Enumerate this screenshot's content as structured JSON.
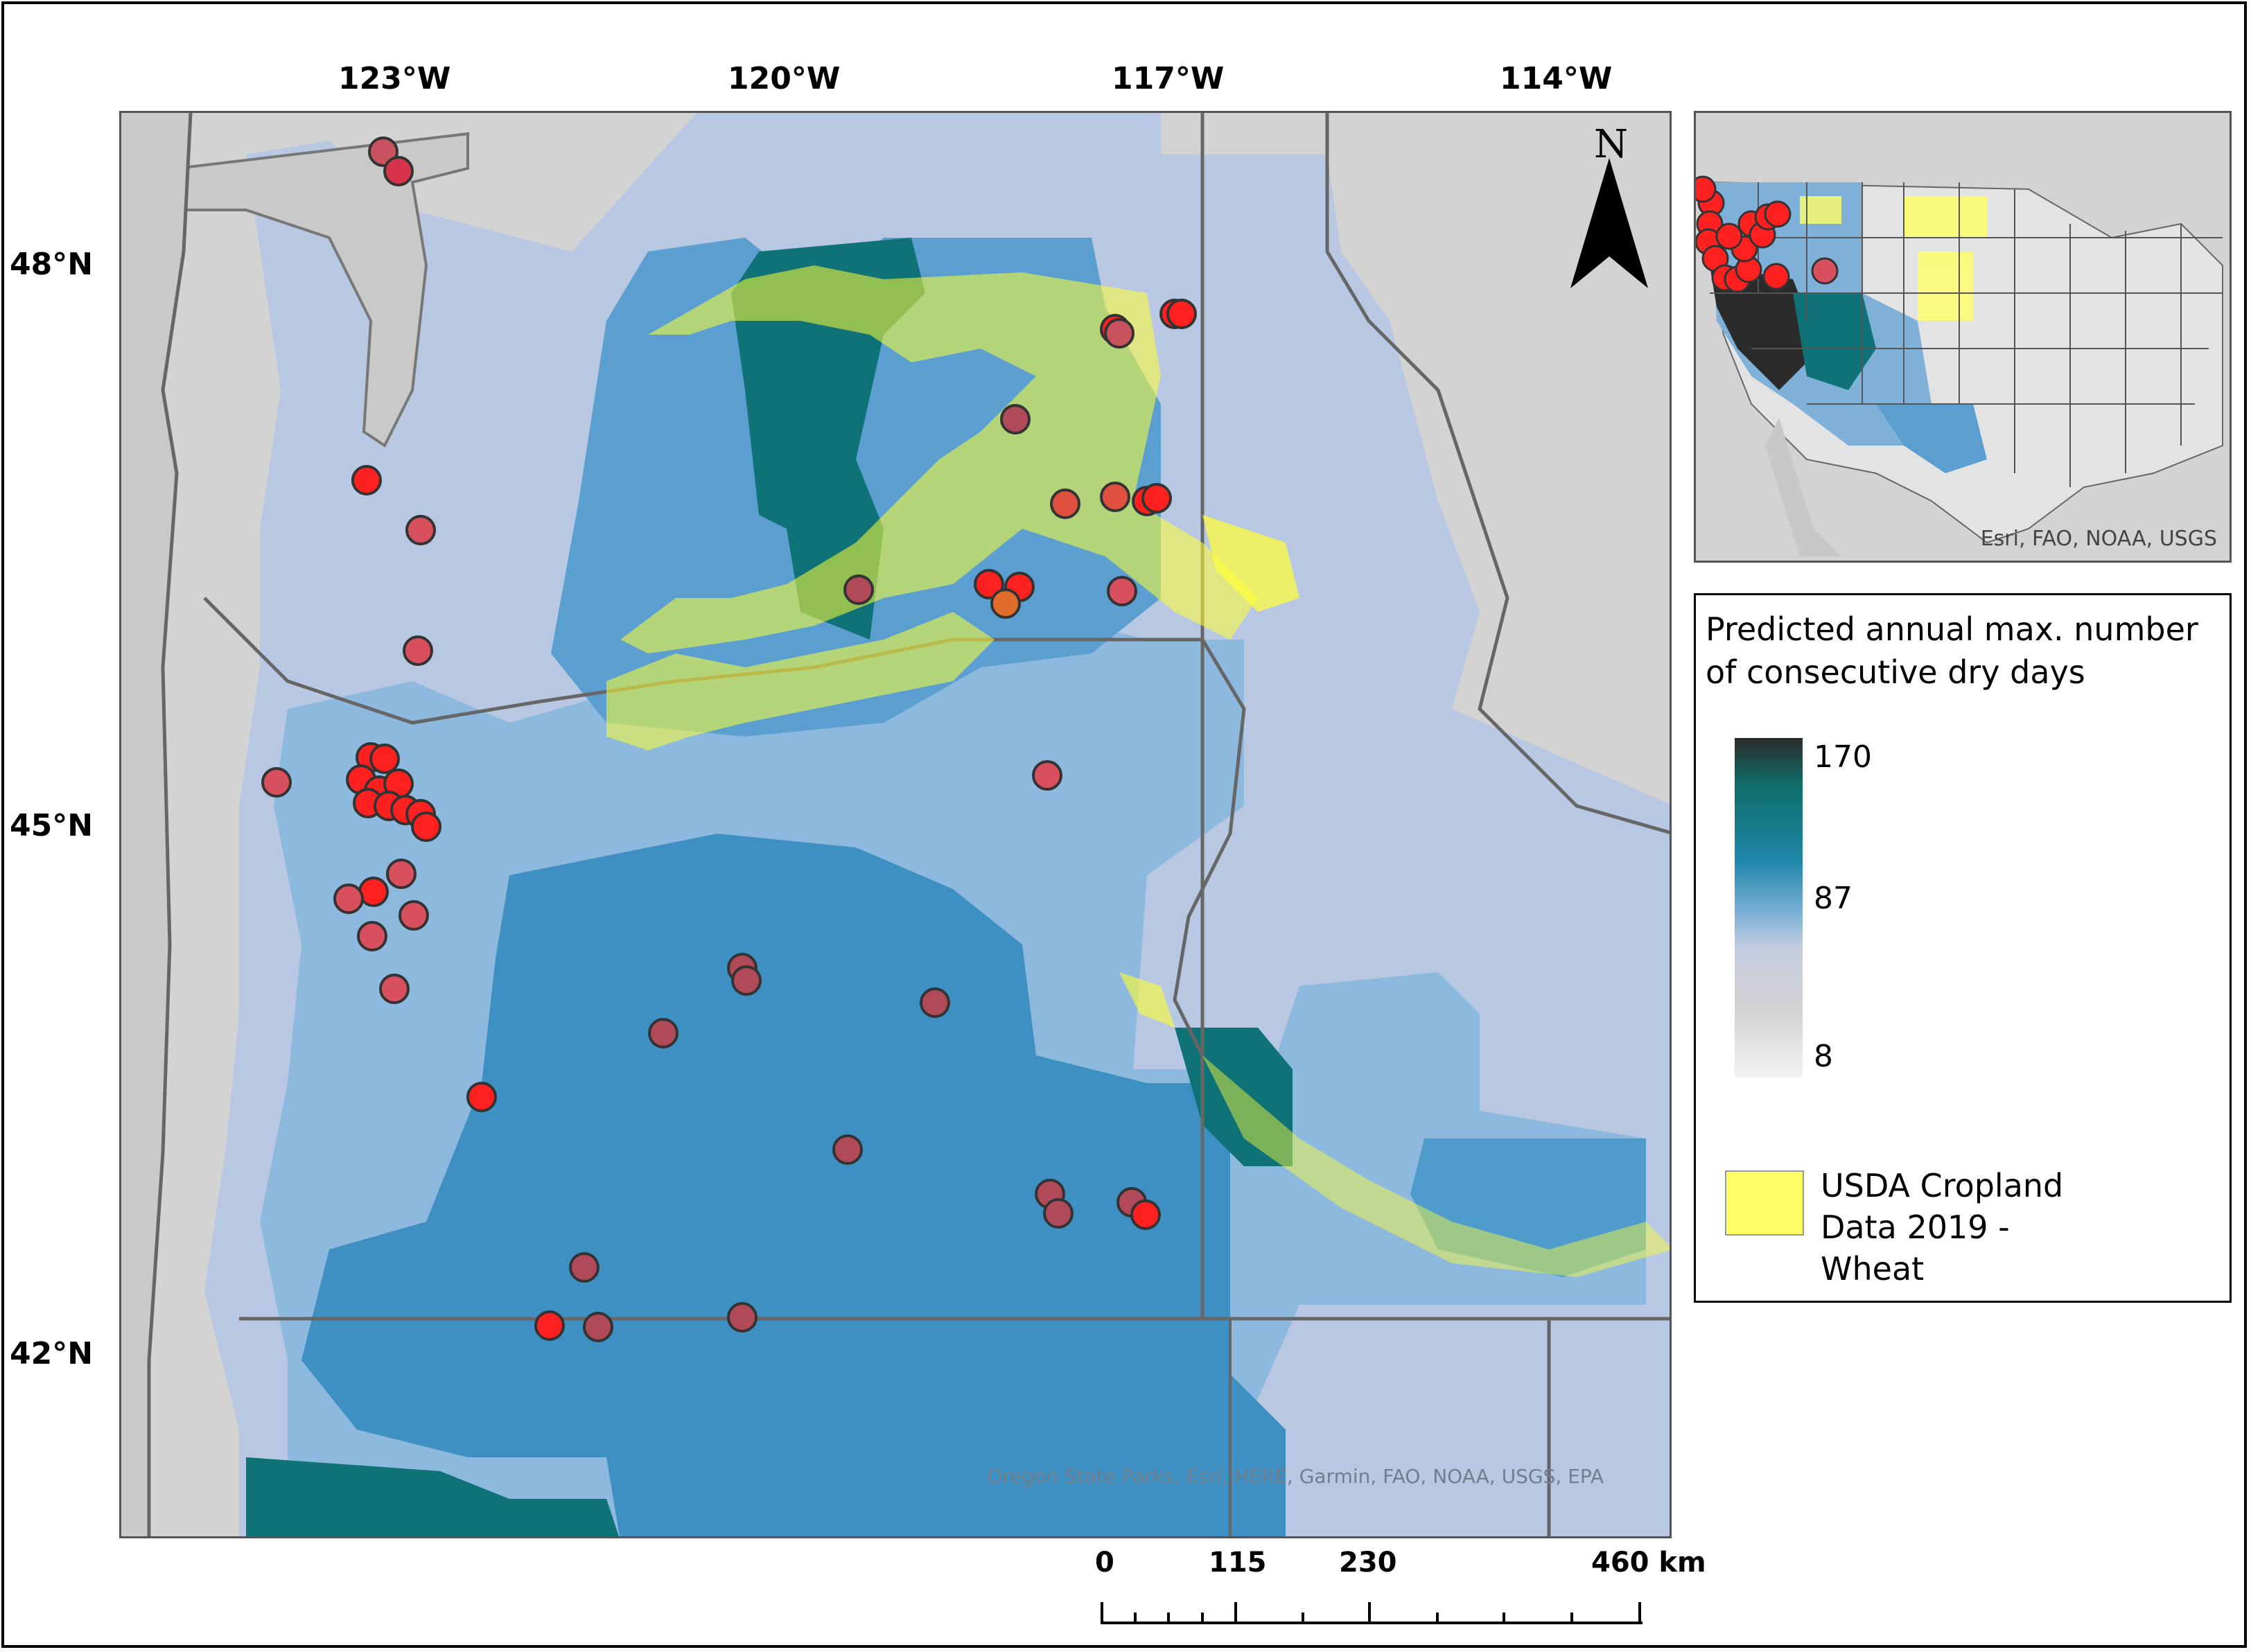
{
  "map": {
    "lon_labels": [
      "123°W",
      "120°W",
      "117°W",
      "114°W"
    ],
    "lat_labels": [
      "48°N",
      "45°N",
      "42°N"
    ],
    "north_letter": "N",
    "attribution": "Oregon State Parks, Esri, HERE, Garmin, FAO, NOAA, USGS, EPA"
  },
  "inset": {
    "attribution": "Esri, FAO, NOAA, USGS"
  },
  "legend": {
    "title": "Predicted annual max. number of consecutive dry days",
    "ramp_ticks": [
      "170",
      "87",
      "8"
    ],
    "ramp_colors": [
      "#2b2b2b",
      "#0f6e6a",
      "#1f86a8",
      "#7fb1d8",
      "#c5cde0",
      "#d2d2d2",
      "#f2f2f2"
    ],
    "wheat_label": "USDA Cropland Data 2019 - Wheat",
    "wheat_color": "#ffff66"
  },
  "scalebar": {
    "labels": [
      "0",
      "115",
      "230",
      "460 km"
    ]
  },
  "colors": {
    "sites": "#ff2020",
    "sites_muted": "#c8525e",
    "water": "#c9c9c9",
    "land_outside": "#d3d3d3",
    "zone_dark": "#0f7277",
    "zone_mid": "#3d90c1",
    "zone_light": "#8cb9dd",
    "zone_pale": "#b8c8e2"
  }
}
